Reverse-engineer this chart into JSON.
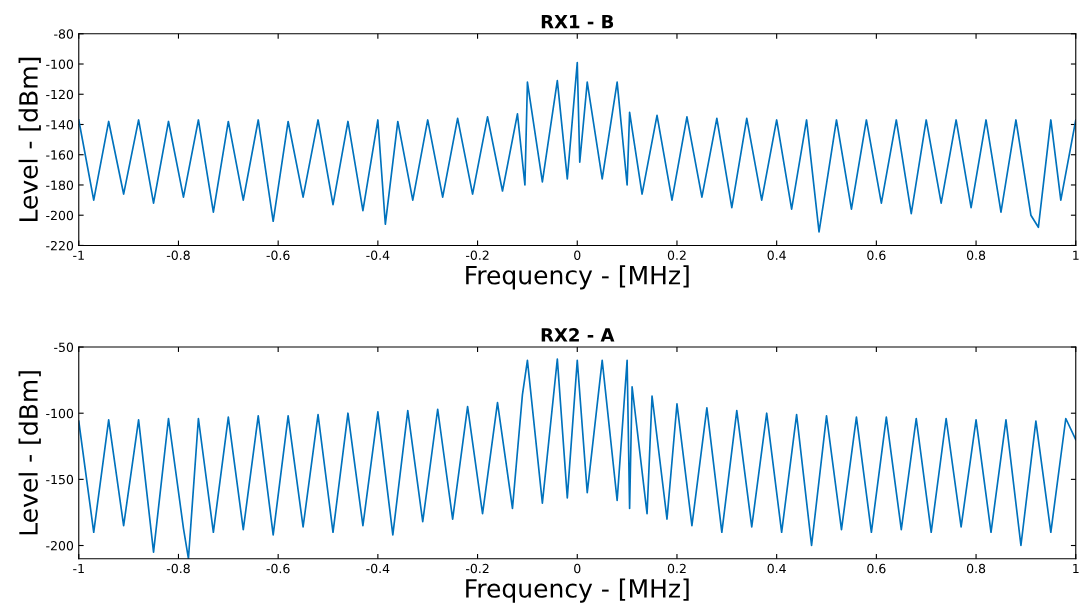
{
  "chart_data": [
    {
      "type": "line",
      "title": "RX1 - B",
      "xlabel": "Frequency - [MHz]",
      "ylabel": "Level - [dBm]",
      "xlim": [
        -1,
        1
      ],
      "xticks": [
        -1,
        -0.8,
        -0.6,
        -0.4,
        -0.2,
        0,
        0.2,
        0.4,
        0.6,
        0.8,
        1
      ],
      "ylim": [
        -220,
        -80
      ],
      "yticks": [
        -220,
        -200,
        -180,
        -160,
        -140,
        -120,
        -100,
        -80
      ],
      "grid": false,
      "legend": false,
      "marker": "none",
      "line_style": "solid",
      "series": [
        {
          "color": "#0072bd",
          "x": [
            -1,
            -0.97,
            -0.94,
            -0.91,
            -0.88,
            -0.85,
            -0.82,
            -0.79,
            -0.76,
            -0.73,
            -0.7,
            -0.67,
            -0.64,
            -0.61,
            -0.58,
            -0.55,
            -0.52,
            -0.49,
            -0.46,
            -0.43,
            -0.4,
            -0.385,
            -0.36,
            -0.33,
            -0.3,
            -0.27,
            -0.24,
            -0.21,
            -0.18,
            -0.15,
            -0.12,
            -0.105,
            -0.1,
            -0.07,
            -0.04,
            -0.02,
            0,
            0.005,
            0.02,
            0.05,
            0.08,
            0.1,
            0.105,
            0.13,
            0.16,
            0.19,
            0.22,
            0.25,
            0.28,
            0.31,
            0.34,
            0.37,
            0.4,
            0.43,
            0.46,
            0.485,
            0.52,
            0.55,
            0.58,
            0.61,
            0.64,
            0.67,
            0.7,
            0.73,
            0.76,
            0.79,
            0.82,
            0.85,
            0.88,
            0.91,
            0.925,
            0.95,
            0.97,
            1
          ],
          "values": [
            -137,
            -190,
            -138,
            -186,
            -137,
            -192,
            -138,
            -188,
            -137,
            -198,
            -138,
            -190,
            -137,
            -204,
            -138,
            -188,
            -137,
            -193,
            -138,
            -197,
            -137,
            -206,
            -138,
            -190,
            -137,
            -188,
            -136,
            -186,
            -135,
            -184,
            -133,
            -180,
            -112,
            -178,
            -111,
            -176,
            -99,
            -165,
            -112,
            -176,
            -112,
            -180,
            -132,
            -186,
            -134,
            -190,
            -135,
            -188,
            -136,
            -195,
            -136,
            -190,
            -137,
            -196,
            -137,
            -211,
            -137,
            -196,
            -137,
            -192,
            -137,
            -199,
            -137,
            -192,
            -137,
            -195,
            -137,
            -198,
            -137,
            -200,
            -208,
            -137,
            -190,
            -137
          ]
        }
      ]
    },
    {
      "type": "line",
      "title": "RX2 - A",
      "xlabel": "Frequency - [MHz]",
      "ylabel": "Level - [dBm]",
      "xlim": [
        -1,
        1
      ],
      "xticks": [
        -1,
        -0.8,
        -0.6,
        -0.4,
        -0.2,
        0,
        0.2,
        0.4,
        0.6,
        0.8,
        1
      ],
      "ylim": [
        -210,
        -50
      ],
      "yticks": [
        -200,
        -150,
        -100,
        -50
      ],
      "grid": false,
      "legend": false,
      "marker": "none",
      "line_style": "solid",
      "series": [
        {
          "color": "#0072bd",
          "x": [
            -1,
            -0.97,
            -0.94,
            -0.91,
            -0.88,
            -0.85,
            -0.82,
            -0.79,
            -0.78,
            -0.76,
            -0.73,
            -0.7,
            -0.67,
            -0.64,
            -0.61,
            -0.58,
            -0.55,
            -0.52,
            -0.49,
            -0.46,
            -0.43,
            -0.4,
            -0.37,
            -0.34,
            -0.31,
            -0.28,
            -0.25,
            -0.22,
            -0.19,
            -0.16,
            -0.13,
            -0.11,
            -0.1,
            -0.07,
            -0.04,
            -0.02,
            0,
            0.02,
            0.05,
            0.08,
            0.1,
            0.105,
            0.11,
            0.14,
            0.15,
            0.18,
            0.2,
            0.23,
            0.26,
            0.29,
            0.32,
            0.35,
            0.38,
            0.41,
            0.44,
            0.47,
            0.5,
            0.53,
            0.56,
            0.59,
            0.62,
            0.65,
            0.68,
            0.71,
            0.74,
            0.77,
            0.8,
            0.83,
            0.86,
            0.89,
            0.92,
            0.95,
            0.98,
            1
          ],
          "values": [
            -106,
            -190,
            -105,
            -185,
            -105,
            -205,
            -104,
            -187,
            -210,
            -104,
            -190,
            -103,
            -188,
            -102,
            -192,
            -102,
            -186,
            -101,
            -190,
            -100,
            -185,
            -99,
            -192,
            -98,
            -182,
            -97,
            -180,
            -95,
            -176,
            -92,
            -172,
            -86,
            -60,
            -168,
            -59,
            -164,
            -60,
            -160,
            -60,
            -166,
            -60,
            -172,
            -80,
            -176,
            -87,
            -180,
            -93,
            -185,
            -96,
            -190,
            -98,
            -186,
            -100,
            -190,
            -101,
            -200,
            -102,
            -188,
            -103,
            -190,
            -103,
            -188,
            -104,
            -190,
            -104,
            -186,
            -105,
            -190,
            -105,
            -200,
            -106,
            -190,
            -104,
            -120
          ]
        }
      ]
    }
  ]
}
